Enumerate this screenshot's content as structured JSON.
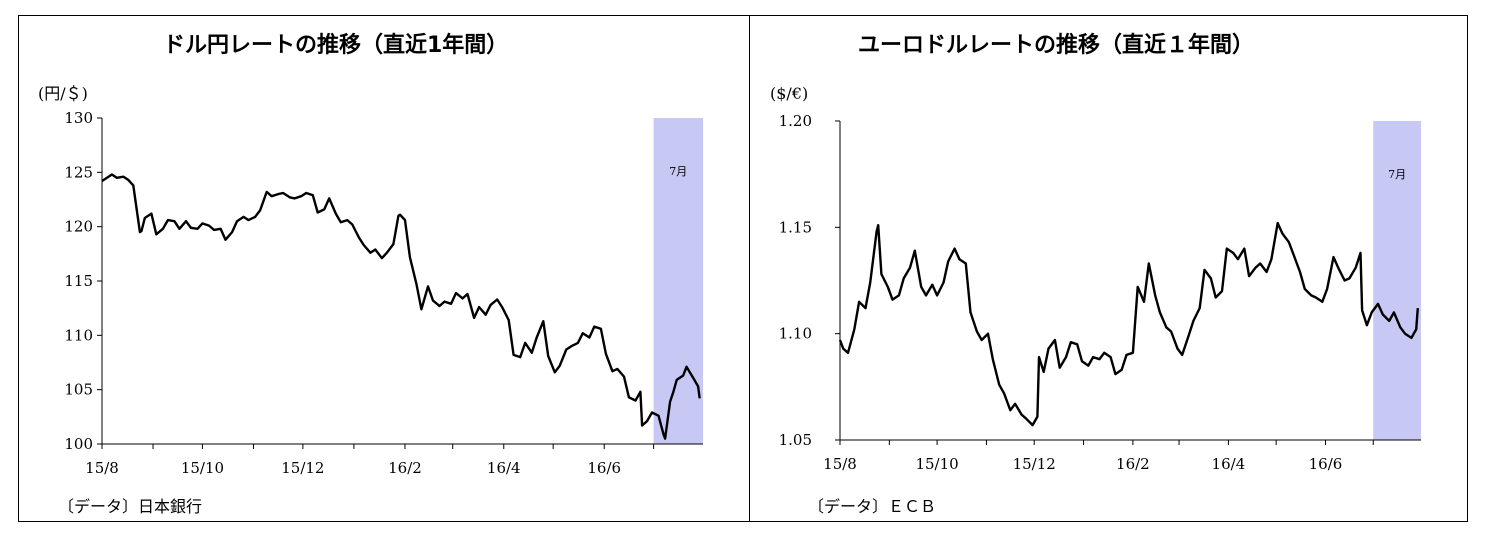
{
  "chart_data": [
    {
      "type": "line",
      "title": "ドル円レートの推移（直近1年間）",
      "unit_label": "(円/＄)",
      "source": "〔データ〕日本銀行",
      "highlight_label": "7月",
      "highlight_range": [
        "2016-07-01",
        "2016-07-29"
      ],
      "x_ticks": [
        "15/8",
        "15/10",
        "15/12",
        "16/2",
        "16/4",
        "16/6"
      ],
      "y_ticks": [
        "130",
        "125",
        "120",
        "115",
        "110",
        "105",
        "100"
      ],
      "ylim": [
        100,
        130
      ],
      "series": [
        {
          "x": [
            "2015-08-01",
            "2015-08-03",
            "2015-08-07",
            "2015-08-10",
            "2015-08-14",
            "2015-08-17",
            "2015-08-20",
            "2015-08-24",
            "2015-08-25",
            "2015-08-27",
            "2015-08-31",
            "2015-09-03",
            "2015-09-07",
            "2015-09-10",
            "2015-09-14",
            "2015-09-17",
            "2015-09-21",
            "2015-09-24",
            "2015-09-28",
            "2015-10-01",
            "2015-10-05",
            "2015-10-08",
            "2015-10-12",
            "2015-10-15",
            "2015-10-19",
            "2015-10-22",
            "2015-10-26",
            "2015-10-29",
            "2015-11-02",
            "2015-11-05",
            "2015-11-09",
            "2015-11-12",
            "2015-11-16",
            "2015-11-19",
            "2015-11-23",
            "2015-11-26",
            "2015-11-30",
            "2015-12-03",
            "2015-12-07",
            "2015-12-10",
            "2015-12-14",
            "2015-12-17",
            "2015-12-21",
            "2015-12-24",
            "2015-12-28",
            "2015-12-31",
            "2016-01-04",
            "2016-01-07",
            "2016-01-11",
            "2016-01-14",
            "2016-01-18",
            "2016-01-21",
            "2016-01-25",
            "2016-01-28",
            "2016-01-29",
            "2016-02-01",
            "2016-02-04",
            "2016-02-08",
            "2016-02-11",
            "2016-02-15",
            "2016-02-18",
            "2016-02-22",
            "2016-02-25",
            "2016-02-29",
            "2016-03-03",
            "2016-03-07",
            "2016-03-10",
            "2016-03-14",
            "2016-03-17",
            "2016-03-21",
            "2016-03-24",
            "2016-03-28",
            "2016-03-31",
            "2016-04-04",
            "2016-04-07",
            "2016-04-11",
            "2016-04-14",
            "2016-04-18",
            "2016-04-21",
            "2016-04-25",
            "2016-04-28",
            "2016-05-02",
            "2016-05-05",
            "2016-05-09",
            "2016-05-12",
            "2016-05-16",
            "2016-05-19",
            "2016-05-23",
            "2016-05-26",
            "2016-05-30",
            "2016-06-02",
            "2016-06-06",
            "2016-06-09",
            "2016-06-13",
            "2016-06-16",
            "2016-06-20",
            "2016-06-23",
            "2016-06-24",
            "2016-06-27",
            "2016-06-30",
            "2016-07-04",
            "2016-07-07",
            "2016-07-08",
            "2016-07-11",
            "2016-07-13",
            "2016-07-15",
            "2016-07-19",
            "2016-07-21",
            "2016-07-25",
            "2016-07-28",
            "2016-07-29"
          ],
          "values": [
            124.2,
            124.4,
            124.8,
            124.5,
            124.6,
            124.3,
            123.8,
            119.5,
            119.6,
            120.8,
            121.2,
            119.3,
            119.8,
            120.6,
            120.5,
            119.8,
            120.5,
            119.9,
            119.8,
            120.3,
            120.1,
            119.7,
            119.8,
            118.8,
            119.5,
            120.5,
            120.9,
            120.6,
            120.9,
            121.5,
            123.2,
            122.8,
            123.0,
            123.1,
            122.7,
            122.6,
            122.8,
            123.1,
            122.9,
            121.3,
            121.6,
            122.6,
            121.2,
            120.4,
            120.6,
            120.2,
            119.0,
            118.3,
            117.6,
            117.9,
            117.1,
            117.6,
            118.4,
            121.0,
            121.1,
            120.6,
            117.2,
            114.7,
            112.4,
            114.5,
            113.2,
            112.7,
            113.1,
            112.9,
            113.9,
            113.4,
            113.8,
            111.6,
            112.6,
            111.9,
            112.8,
            113.3,
            112.6,
            111.4,
            108.2,
            108.0,
            109.3,
            108.4,
            109.8,
            111.3,
            108.1,
            106.6,
            107.2,
            108.7,
            109.0,
            109.3,
            110.2,
            109.8,
            110.8,
            110.6,
            108.3,
            106.7,
            106.9,
            106.2,
            104.3,
            104.0,
            104.8,
            101.7,
            102.1,
            102.9,
            102.6,
            100.9,
            100.5,
            103.9,
            104.8,
            105.9,
            106.3,
            107.1,
            106.1,
            105.3,
            104.2
          ]
        }
      ]
    },
    {
      "type": "line",
      "title": "ユーロドルレートの推移（直近１年間）",
      "unit_label": "($/€)",
      "source": "〔データ〕ＥＣＢ",
      "highlight_label": "7月",
      "highlight_range": [
        "2016-07-01",
        "2016-07-29"
      ],
      "x_ticks": [
        "15/8",
        "15/10",
        "15/12",
        "16/2",
        "16/4",
        "16/6"
      ],
      "y_ticks": [
        "1.20",
        "1.15",
        "1.10",
        "1.05"
      ],
      "ylim": [
        1.05,
        1.2
      ],
      "series": [
        {
          "x": [
            "2015-08-01",
            "2015-08-03",
            "2015-08-06",
            "2015-08-10",
            "2015-08-13",
            "2015-08-17",
            "2015-08-20",
            "2015-08-24",
            "2015-08-25",
            "2015-08-27",
            "2015-08-31",
            "2015-09-03",
            "2015-09-07",
            "2015-09-10",
            "2015-09-14",
            "2015-09-17",
            "2015-09-21",
            "2015-09-24",
            "2015-09-28",
            "2015-10-01",
            "2015-10-05",
            "2015-10-08",
            "2015-10-12",
            "2015-10-15",
            "2015-10-19",
            "2015-10-22",
            "2015-10-26",
            "2015-10-29",
            "2015-11-02",
            "2015-11-05",
            "2015-11-09",
            "2015-11-12",
            "2015-11-16",
            "2015-11-19",
            "2015-11-23",
            "2015-11-26",
            "2015-11-30",
            "2015-12-03",
            "2015-12-04",
            "2015-12-07",
            "2015-12-10",
            "2015-12-14",
            "2015-12-17",
            "2015-12-21",
            "2015-12-24",
            "2015-12-28",
            "2015-12-31",
            "2016-01-04",
            "2016-01-07",
            "2016-01-11",
            "2016-01-14",
            "2016-01-18",
            "2016-01-21",
            "2016-01-25",
            "2016-01-28",
            "2016-02-01",
            "2016-02-04",
            "2016-02-08",
            "2016-02-11",
            "2016-02-15",
            "2016-02-18",
            "2016-02-22",
            "2016-02-25",
            "2016-02-29",
            "2016-03-03",
            "2016-03-07",
            "2016-03-10",
            "2016-03-14",
            "2016-03-17",
            "2016-03-21",
            "2016-03-24",
            "2016-03-28",
            "2016-03-31",
            "2016-04-04",
            "2016-04-07",
            "2016-04-11",
            "2016-04-14",
            "2016-04-18",
            "2016-04-21",
            "2016-04-25",
            "2016-04-28",
            "2016-05-02",
            "2016-05-05",
            "2016-05-09",
            "2016-05-12",
            "2016-05-16",
            "2016-05-19",
            "2016-05-23",
            "2016-05-26",
            "2016-05-30",
            "2016-06-02",
            "2016-06-06",
            "2016-06-09",
            "2016-06-13",
            "2016-06-16",
            "2016-06-20",
            "2016-06-23",
            "2016-06-24",
            "2016-06-27",
            "2016-06-30",
            "2016-07-04",
            "2016-07-07",
            "2016-07-11",
            "2016-07-14",
            "2016-07-18",
            "2016-07-21",
            "2016-07-25",
            "2016-07-28",
            "2016-07-29"
          ],
          "values": [
            1.097,
            1.093,
            1.091,
            1.102,
            1.115,
            1.112,
            1.124,
            1.148,
            1.151,
            1.128,
            1.122,
            1.116,
            1.118,
            1.126,
            1.131,
            1.139,
            1.122,
            1.118,
            1.123,
            1.118,
            1.124,
            1.134,
            1.14,
            1.135,
            1.133,
            1.11,
            1.101,
            1.097,
            1.1,
            1.088,
            1.076,
            1.072,
            1.064,
            1.067,
            1.062,
            1.06,
            1.057,
            1.061,
            1.089,
            1.082,
            1.093,
            1.097,
            1.084,
            1.089,
            1.096,
            1.095,
            1.087,
            1.085,
            1.089,
            1.088,
            1.091,
            1.089,
            1.081,
            1.083,
            1.09,
            1.091,
            1.122,
            1.115,
            1.133,
            1.118,
            1.11,
            1.103,
            1.101,
            1.093,
            1.09,
            1.099,
            1.106,
            1.112,
            1.13,
            1.126,
            1.117,
            1.12,
            1.14,
            1.138,
            1.135,
            1.14,
            1.127,
            1.131,
            1.133,
            1.129,
            1.135,
            1.152,
            1.147,
            1.143,
            1.137,
            1.129,
            1.121,
            1.118,
            1.117,
            1.115,
            1.121,
            1.136,
            1.131,
            1.125,
            1.126,
            1.131,
            1.138,
            1.111,
            1.104,
            1.11,
            1.114,
            1.109,
            1.106,
            1.11,
            1.103,
            1.1,
            1.098,
            1.102,
            1.112
          ]
        }
      ]
    }
  ]
}
